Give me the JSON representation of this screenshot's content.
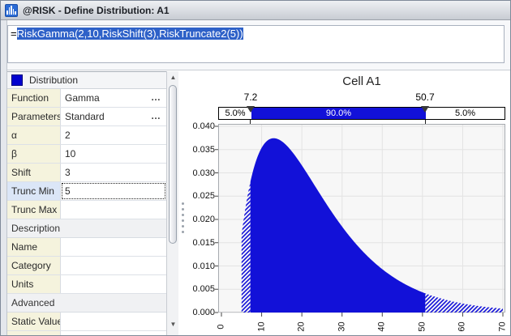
{
  "window": {
    "title": "@RISK - Define Distribution: A1"
  },
  "icons": {
    "app": "histogram-icon",
    "scroll_up": "▲",
    "scroll_down": "▼",
    "ellipsis": "…"
  },
  "formula_bar": {
    "prefix": "=",
    "formula_selected": "RiskGamma(2,10,RiskShift(3),RiskTruncate2(5))"
  },
  "properties_panel": {
    "title": "Distribution",
    "swatch_color": "#0202cf",
    "rows": [
      {
        "label": "Function",
        "value": "Gamma",
        "has_ellipsis": true
      },
      {
        "label": "Parameters",
        "value": "Standard",
        "has_ellipsis": true
      },
      {
        "label": "α",
        "value": "2"
      },
      {
        "label": "β",
        "value": "10"
      },
      {
        "label": "Shift",
        "value": "3"
      },
      {
        "label": "Trunc Min",
        "value": "5",
        "selected": true
      },
      {
        "label": "Trunc Max",
        "value": ""
      },
      {
        "label": "Description",
        "section": true
      },
      {
        "label": "Name",
        "value": ""
      },
      {
        "label": "Category",
        "value": ""
      },
      {
        "label": "Units",
        "value": ""
      },
      {
        "label": "Advanced",
        "section": true
      },
      {
        "label": "Static Value",
        "value": ""
      }
    ]
  },
  "chart_data": {
    "type": "area",
    "title": "Cell A1",
    "distribution": {
      "name": "Gamma",
      "alpha": 2,
      "beta": 10,
      "shift": 3,
      "trunc_min": 5
    },
    "x_range": [
      0,
      70
    ],
    "y_range": [
      0,
      0.04
    ],
    "x_tick_labels": [
      "0",
      "10",
      "20",
      "30",
      "40",
      "50",
      "60",
      "70"
    ],
    "y_tick_labels": [
      "0.040",
      "0.035",
      "0.030",
      "0.025",
      "0.020",
      "0.015",
      "0.010",
      "0.005",
      "0.000"
    ],
    "delimiters": {
      "left_x": 7.2,
      "right_x": 50.7,
      "left_label": "7.2",
      "right_label": "50.7"
    },
    "bands": [
      {
        "label": "5.0%",
        "pct": 5.0
      },
      {
        "label": "90.0%",
        "pct": 90.0
      },
      {
        "label": "5.0%",
        "pct": 5.0
      }
    ],
    "curve_color": "#1211d8",
    "plot_bg": "#f7f7f7",
    "grid": true,
    "peak_y_approx": 0.0375
  }
}
